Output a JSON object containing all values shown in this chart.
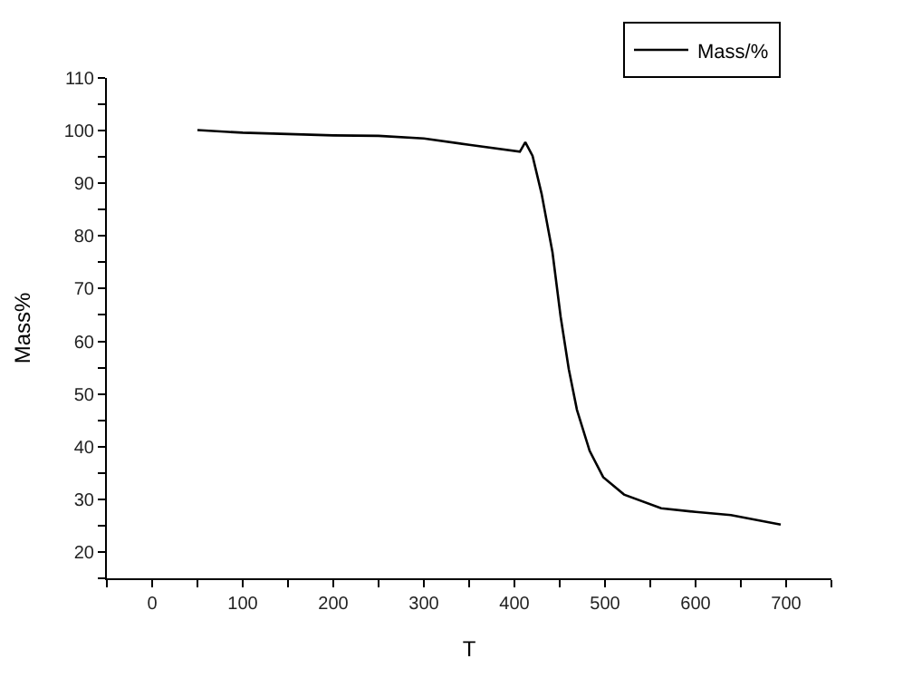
{
  "chart_data": {
    "type": "line",
    "xlabel": "T",
    "ylabel": "Mass%",
    "x": [
      50,
      100,
      200,
      250,
      300,
      350,
      406,
      412,
      420,
      430,
      442,
      451,
      460,
      469,
      483,
      498,
      521,
      562,
      600,
      639,
      694
    ],
    "series": [
      {
        "name": "Mass/%",
        "color": "#000000",
        "values": [
          100.1,
          99.6,
          99.1,
          99.0,
          98.5,
          97.3,
          96.0,
          97.8,
          95.2,
          88.0,
          76.9,
          64.7,
          54.7,
          47.0,
          39.2,
          34.2,
          30.9,
          28.3,
          27.6,
          27.0,
          25.2
        ]
      }
    ],
    "xlim": [
      -50,
      750
    ],
    "xticks": [
      {
        "value": -50,
        "label": null
      },
      0,
      {
        "value": 50,
        "label": null
      },
      100,
      {
        "value": 150,
        "label": null
      },
      200,
      {
        "value": 250,
        "label": null
      },
      300,
      {
        "value": 350,
        "label": null
      },
      400,
      {
        "value": 450,
        "label": null
      },
      500,
      {
        "value": 550,
        "label": null
      },
      600,
      {
        "value": 650,
        "label": null
      },
      700,
      {
        "value": 750,
        "label": null
      }
    ],
    "ylim": [
      15,
      110
    ],
    "yticks": [
      {
        "value": 15,
        "label": null
      },
      20,
      {
        "value": 25,
        "label": null
      },
      30,
      {
        "value": 35,
        "label": null
      },
      40,
      {
        "value": 45,
        "label": null
      },
      50,
      {
        "value": 55,
        "label": null
      },
      60,
      {
        "value": 65,
        "label": null
      },
      70,
      {
        "value": 75,
        "label": null
      },
      80,
      {
        "value": 85,
        "label": null
      },
      90,
      {
        "value": 95,
        "label": null
      },
      100,
      {
        "value": 105,
        "label": null
      },
      110
    ],
    "legend": "top right",
    "marker": "none",
    "line_style": "solid"
  }
}
